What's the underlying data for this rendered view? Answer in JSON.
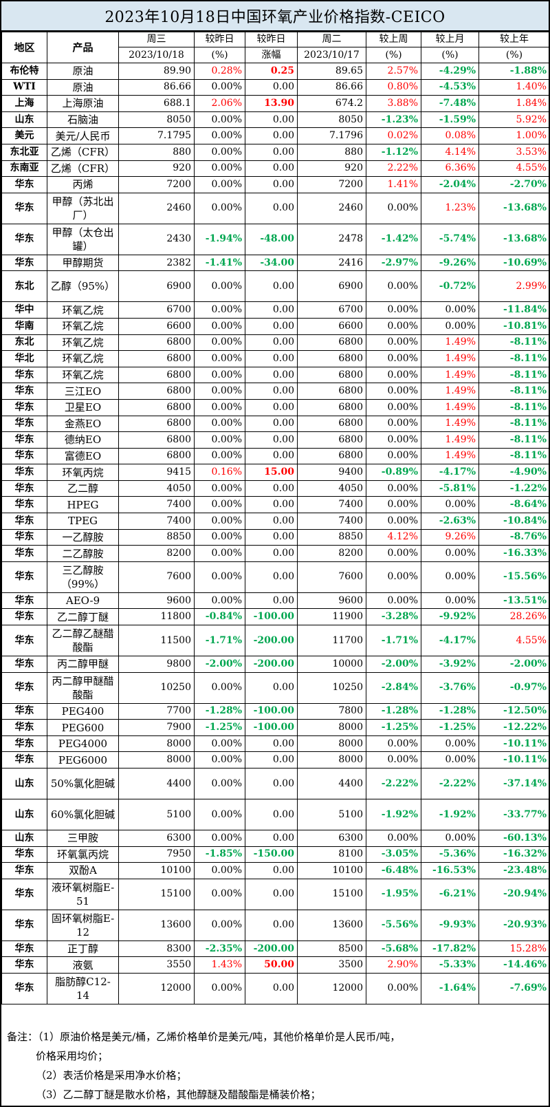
{
  "title": "2023年10月18日中国环氧产业价格指数-CEICO",
  "header": {
    "region": "地区",
    "product": "产品",
    "wed": "周三",
    "wed_date": "2023/10/18",
    "vs_yday": "较昨日",
    "vs_yday_unit": "(%)",
    "vs_yday2": "较昨日",
    "vs_yday2_unit": "涨幅",
    "tue": "周二",
    "tue_date": "2023/10/17",
    "vs_week": "较上周",
    "vs_week_unit": "(%)",
    "vs_month": "较上月",
    "vs_month_unit": "(%)",
    "vs_year": "较上年",
    "vs_year_unit": "(%)"
  },
  "rows": [
    {
      "region": "布伦特",
      "product": "原油",
      "wed": "89.90",
      "pct": "0.28%",
      "chg": "0.25",
      "tue": "89.65",
      "wk": "2.57%",
      "mo": "-4.29%",
      "yr": "-1.88%"
    },
    {
      "region": "WTI",
      "product": "原油",
      "wed": "86.66",
      "pct": "0.00%",
      "chg": "0.00",
      "tue": "86.66",
      "wk": "0.80%",
      "mo": "-4.53%",
      "yr": "1.40%"
    },
    {
      "region": "上海",
      "product": "上海原油",
      "wed": "688.1",
      "pct": "2.06%",
      "chg": "13.90",
      "tue": "674.2",
      "wk": "3.88%",
      "mo": "-7.48%",
      "yr": "1.84%"
    },
    {
      "region": "山东",
      "product": "石脑油",
      "wed": "8050",
      "pct": "0.00%",
      "chg": "0.00",
      "tue": "8050",
      "wk": "-1.23%",
      "mo": "-1.59%",
      "yr": "5.92%"
    },
    {
      "region": "美元",
      "product": "美元/人民币",
      "wed": "7.1795",
      "pct": "0.00%",
      "chg": "0.00",
      "tue": "7.1796",
      "wk": "0.02%",
      "mo": "0.08%",
      "yr": "1.00%"
    },
    {
      "region": "东北亚",
      "product": "乙烯（CFR）",
      "wed": "880",
      "pct": "0.00%",
      "chg": "0.00",
      "tue": "880",
      "wk": "-1.12%",
      "mo": "4.14%",
      "yr": "3.53%"
    },
    {
      "region": "东南亚",
      "product": "乙烯（CFR）",
      "wed": "920",
      "pct": "0.00%",
      "chg": "0.00",
      "tue": "920",
      "wk": "2.22%",
      "mo": "6.36%",
      "yr": "4.55%"
    },
    {
      "region": "华东",
      "product": "丙烯",
      "wed": "7200",
      "pct": "0.00%",
      "chg": "0.00",
      "tue": "7200",
      "wk": "1.41%",
      "mo": "-2.04%",
      "yr": "-2.70%"
    },
    {
      "region": "华东",
      "product": "甲醇（苏北出厂）",
      "wed": "2460",
      "pct": "0.00%",
      "chg": "0.00",
      "tue": "2460",
      "wk": "0.00%",
      "mo": "1.23%",
      "yr": "-13.68%"
    },
    {
      "region": "华东",
      "product": "甲醇（太仓出罐）",
      "wed": "2430",
      "pct": "-1.94%",
      "chg": "-48.00",
      "tue": "2478",
      "wk": "-1.42%",
      "mo": "-5.74%",
      "yr": "-13.68%"
    },
    {
      "region": "华东",
      "product": "甲醇期货",
      "wed": "2382",
      "pct": "-1.41%",
      "chg": "-34.00",
      "tue": "2416",
      "wk": "-2.97%",
      "mo": "-9.26%",
      "yr": "-10.69%"
    },
    {
      "region": "东北",
      "product": "乙醇（95%）",
      "wed": "6900",
      "pct": "0.00%",
      "chg": "0.00",
      "tue": "6900",
      "wk": "0.00%",
      "mo": "-0.72%",
      "yr": "2.99%"
    },
    {
      "region": "华中",
      "product": "环氧乙烷",
      "wed": "6700",
      "pct": "0.00%",
      "chg": "0.00",
      "tue": "6700",
      "wk": "0.00%",
      "mo": "0.00%",
      "yr": "-11.84%"
    },
    {
      "region": "华南",
      "product": "环氧乙烷",
      "wed": "6600",
      "pct": "0.00%",
      "chg": "0.00",
      "tue": "6600",
      "wk": "0.00%",
      "mo": "0.00%",
      "yr": "-10.81%"
    },
    {
      "region": "东北",
      "product": "环氧乙烷",
      "wed": "6800",
      "pct": "0.00%",
      "chg": "0.00",
      "tue": "6800",
      "wk": "0.00%",
      "mo": "1.49%",
      "yr": "-8.11%"
    },
    {
      "region": "华北",
      "product": "环氧乙烷",
      "wed": "6800",
      "pct": "0.00%",
      "chg": "0.00",
      "tue": "6800",
      "wk": "0.00%",
      "mo": "1.49%",
      "yr": "-8.11%"
    },
    {
      "region": "华东",
      "product": "环氧乙烷",
      "wed": "6800",
      "pct": "0.00%",
      "chg": "0.00",
      "tue": "6800",
      "wk": "0.00%",
      "mo": "1.49%",
      "yr": "-8.11%"
    },
    {
      "region": "华东",
      "product": "三江EO",
      "wed": "6800",
      "pct": "0.00%",
      "chg": "0.00",
      "tue": "6800",
      "wk": "0.00%",
      "mo": "1.49%",
      "yr": "-8.11%"
    },
    {
      "region": "华东",
      "product": "卫星EO",
      "wed": "6800",
      "pct": "0.00%",
      "chg": "0.00",
      "tue": "6800",
      "wk": "0.00%",
      "mo": "1.49%",
      "yr": "-8.11%"
    },
    {
      "region": "华东",
      "product": "金燕EO",
      "wed": "6800",
      "pct": "0.00%",
      "chg": "0.00",
      "tue": "6800",
      "wk": "0.00%",
      "mo": "1.49%",
      "yr": "-8.11%"
    },
    {
      "region": "华东",
      "product": "德纳EO",
      "wed": "6800",
      "pct": "0.00%",
      "chg": "0.00",
      "tue": "6800",
      "wk": "0.00%",
      "mo": "1.49%",
      "yr": "-8.11%"
    },
    {
      "region": "华东",
      "product": "富德EO",
      "wed": "6800",
      "pct": "0.00%",
      "chg": "0.00",
      "tue": "6800",
      "wk": "0.00%",
      "mo": "1.49%",
      "yr": "-8.11%"
    },
    {
      "region": "华东",
      "product": "环氧丙烷",
      "wed": "9415",
      "pct": "0.16%",
      "chg": "15.00",
      "tue": "9400",
      "wk": "-0.89%",
      "mo": "-4.17%",
      "yr": "-4.90%"
    },
    {
      "region": "华东",
      "product": "乙二醇",
      "wed": "4050",
      "pct": "0.00%",
      "chg": "0.00",
      "tue": "4050",
      "wk": "0.00%",
      "mo": "-5.81%",
      "yr": "-1.22%"
    },
    {
      "region": "华东",
      "product": "HPEG",
      "wed": "7400",
      "pct": "0.00%",
      "chg": "0.00",
      "tue": "7400",
      "wk": "0.00%",
      "mo": "0.00%",
      "yr": "-8.64%"
    },
    {
      "region": "华东",
      "product": "TPEG",
      "wed": "7400",
      "pct": "0.00%",
      "chg": "0.00",
      "tue": "7400",
      "wk": "0.00%",
      "mo": "-2.63%",
      "yr": "-10.84%"
    },
    {
      "region": "华东",
      "product": "一乙醇胺",
      "wed": "8850",
      "pct": "0.00%",
      "chg": "0.00",
      "tue": "8850",
      "wk": "4.12%",
      "mo": "9.26%",
      "yr": "-8.76%"
    },
    {
      "region": "华东",
      "product": "二乙醇胺",
      "wed": "8200",
      "pct": "0.00%",
      "chg": "0.00",
      "tue": "8200",
      "wk": "0.00%",
      "mo": "0.00%",
      "yr": "-16.33%"
    },
    {
      "region": "华东",
      "product": "三乙醇胺（99%）",
      "wed": "7600",
      "pct": "0.00%",
      "chg": "0.00",
      "tue": "7600",
      "wk": "0.00%",
      "mo": "0.00%",
      "yr": "-15.56%"
    },
    {
      "region": "华东",
      "product": "AEO-9",
      "wed": "9600",
      "pct": "0.00%",
      "chg": "0.00",
      "tue": "9600",
      "wk": "0.00%",
      "mo": "0.00%",
      "yr": "-13.51%"
    },
    {
      "region": "华东",
      "product": "乙二醇丁醚",
      "wed": "11800",
      "pct": "-0.84%",
      "chg": "-100.00",
      "tue": "11900",
      "wk": "-3.28%",
      "mo": "-9.92%",
      "yr": "28.26%"
    },
    {
      "region": "华东",
      "product": "乙二醇乙醚醋酸酯",
      "wed": "11500",
      "pct": "-1.71%",
      "chg": "-200.00",
      "tue": "11700",
      "wk": "-1.71%",
      "mo": "-4.17%",
      "yr": "4.55%"
    },
    {
      "region": "华东",
      "product": "丙二醇甲醚",
      "wed": "9800",
      "pct": "-2.00%",
      "chg": "-200.00",
      "tue": "10000",
      "wk": "-2.00%",
      "mo": "-3.92%",
      "yr": "-2.00%"
    },
    {
      "region": "华东",
      "product": "丙二醇甲醚醋酸酯",
      "wed": "10250",
      "pct": "0.00%",
      "chg": "0.00",
      "tue": "10250",
      "wk": "-2.84%",
      "mo": "-3.76%",
      "yr": "-0.97%"
    },
    {
      "region": "华东",
      "product": "PEG400",
      "wed": "7700",
      "pct": "-1.28%",
      "chg": "-100.00",
      "tue": "7800",
      "wk": "-1.28%",
      "mo": "-1.28%",
      "yr": "-12.50%"
    },
    {
      "region": "华东",
      "product": "PEG600",
      "wed": "7900",
      "pct": "-1.25%",
      "chg": "-100.00",
      "tue": "8000",
      "wk": "-1.25%",
      "mo": "-1.25%",
      "yr": "-12.22%"
    },
    {
      "region": "华东",
      "product": "PEG4000",
      "wed": "8000",
      "pct": "0.00%",
      "chg": "0.00",
      "tue": "8000",
      "wk": "0.00%",
      "mo": "0.00%",
      "yr": "-10.11%"
    },
    {
      "region": "华东",
      "product": "PEG6000",
      "wed": "8000",
      "pct": "0.00%",
      "chg": "0.00",
      "tue": "8000",
      "wk": "0.00%",
      "mo": "0.00%",
      "yr": "-10.11%"
    },
    {
      "region": "山东",
      "product": "50%氯化胆碱",
      "wed": "4400",
      "pct": "0.00%",
      "chg": "0.00",
      "tue": "4400",
      "wk": "-2.22%",
      "mo": "-2.22%",
      "yr": "-37.14%"
    },
    {
      "region": "山东",
      "product": "60%氯化胆碱",
      "wed": "5100",
      "pct": "0.00%",
      "chg": "0.00",
      "tue": "5100",
      "wk": "-1.92%",
      "mo": "-1.92%",
      "yr": "-33.77%"
    },
    {
      "region": "山东",
      "product": "三甲胺",
      "wed": "6300",
      "pct": "0.00%",
      "chg": "0.00",
      "tue": "6300",
      "wk": "0.00%",
      "mo": "0.00%",
      "yr": "-60.13%"
    },
    {
      "region": "华东",
      "product": "环氧氯丙烷",
      "wed": "7950",
      "pct": "-1.85%",
      "chg": "-150.00",
      "tue": "8100",
      "wk": "-3.05%",
      "mo": "-5.36%",
      "yr": "-16.32%"
    },
    {
      "region": "华东",
      "product": "双酚A",
      "wed": "10100",
      "pct": "0.00%",
      "chg": "0.00",
      "tue": "10100",
      "wk": "-6.48%",
      "mo": "-16.53%",
      "yr": "-23.48%"
    },
    {
      "region": "华东",
      "product": "液环氧树脂E-51",
      "wed": "15100",
      "pct": "0.00%",
      "chg": "0.00",
      "tue": "15100",
      "wk": "-1.95%",
      "mo": "-6.21%",
      "yr": "-20.94%"
    },
    {
      "region": "华东",
      "product": "固环氧树脂E-12",
      "wed": "13600",
      "pct": "0.00%",
      "chg": "0.00",
      "tue": "13600",
      "wk": "-5.56%",
      "mo": "-9.93%",
      "yr": "-20.93%"
    },
    {
      "region": "华东",
      "product": "正丁醇",
      "wed": "8300",
      "pct": "-2.35%",
      "chg": "-200.00",
      "tue": "8500",
      "wk": "-5.68%",
      "mo": "-17.82%",
      "yr": "15.28%"
    },
    {
      "region": "华东",
      "product": "液氨",
      "wed": "3550",
      "pct": "1.43%",
      "chg": "50.00",
      "tue": "3500",
      "wk": "2.90%",
      "mo": "-5.33%",
      "yr": "-14.46%"
    },
    {
      "region": "华东",
      "product": "脂肪醇C12-14",
      "wed": "12000",
      "pct": "0.00%",
      "chg": "0.00",
      "tue": "12000",
      "wk": "0.00%",
      "mo": "-1.64%",
      "yr": "-7.69%"
    }
  ],
  "notes": [
    "备注：（1）原油价格是美元/桶，乙烯价格单价是美元/吨，其他价格单价是人民币/吨，",
    "价格采用均价；",
    "（2）表活价格是采用净水价格；",
    "（3）乙二醇丁醚是散水价格，其他醇醚及醋酸酯是桶装价格；"
  ],
  "colors": {
    "up": "#ff0000",
    "down": "#00a650",
    "title_bg": "#d9e7f1"
  }
}
